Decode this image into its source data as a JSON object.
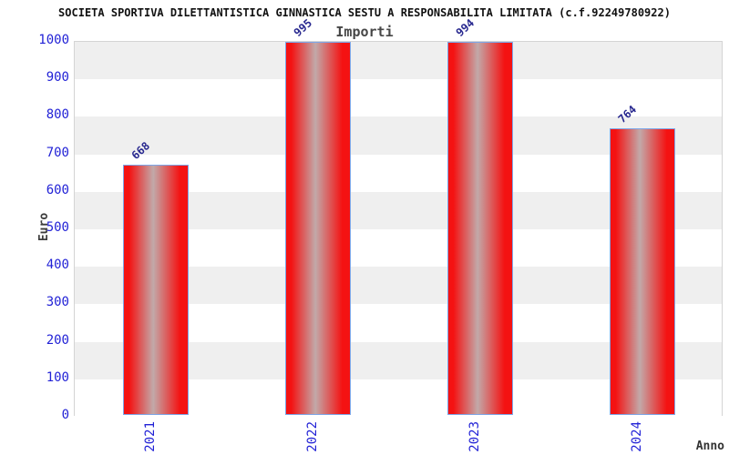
{
  "title": "SOCIETA SPORTIVA DILETTANTISTICA GINNASTICA SESTU A RESPONSABILITA LIMITATA (c.f.92249780922)",
  "chart_data": {
    "type": "bar",
    "title": "Importi",
    "categories": [
      "2021",
      "2022",
      "2023",
      "2024"
    ],
    "values": [
      668,
      995,
      994,
      764
    ],
    "value_labels": [
      "668",
      "995",
      "994",
      "764"
    ],
    "xlabel": "Anno",
    "ylabel": "Euro",
    "ylim": [
      0,
      1000
    ],
    "ytick_step": 100,
    "yticks": [
      0,
      100,
      200,
      300,
      400,
      500,
      600,
      700,
      800,
      900,
      1000
    ],
    "grid": "alternating-horizontal-bands",
    "legend_position": "none",
    "colors": {
      "bar_red": "#f41212",
      "bar_highlight": "#c2a9a9",
      "bar_border": "#7da6e8",
      "tick_label_blue": "#2222d6",
      "value_label_navy": "#28288f",
      "band_gray": "#efefef",
      "band_white": "#ffffff",
      "axis_text_dark": "#3c3c3c",
      "title_color": "#111111"
    }
  }
}
